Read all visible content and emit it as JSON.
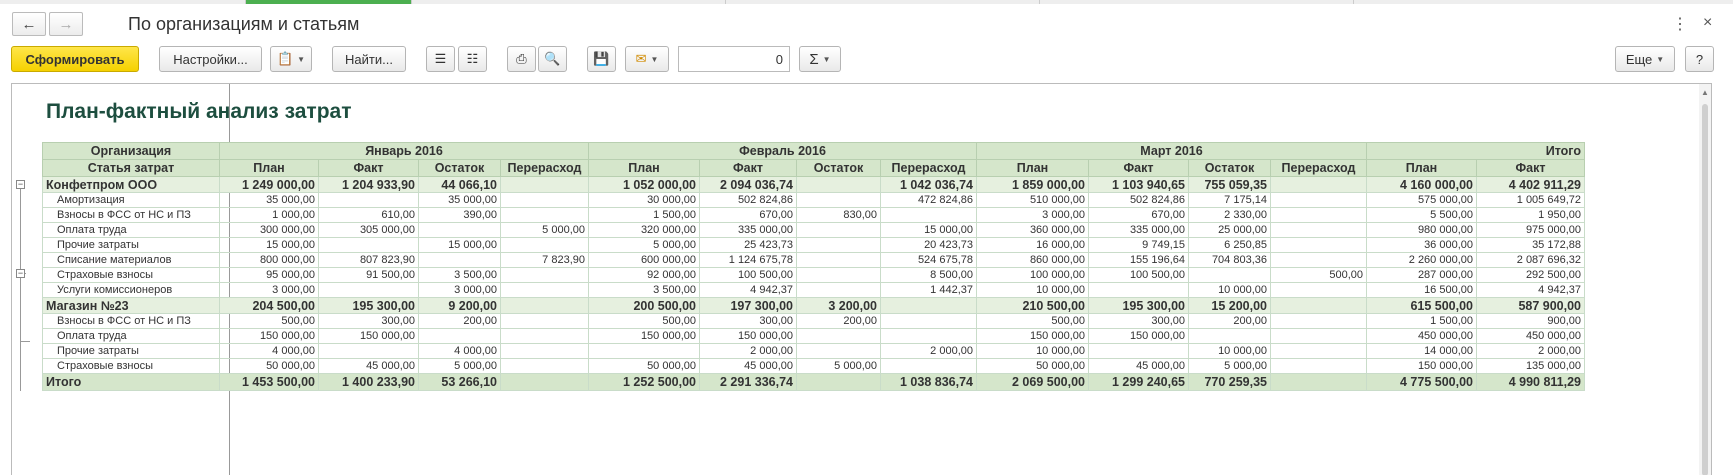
{
  "window": {
    "title": "По организациям и статьям",
    "more_icon": "kebab-icon",
    "close_icon": "close-icon"
  },
  "toolbar": {
    "generate_label": "Сформировать",
    "settings_label": "Настройки...",
    "find_label": "Найти...",
    "number_value": "0",
    "sum_symbol": "Σ",
    "more_label": "Еще",
    "help_label": "?"
  },
  "report": {
    "heading": "План-фактный анализ затрат",
    "header_row1": [
      "Организация",
      "Январь 2016",
      "Февраль 2016",
      "Март 2016",
      "Итого"
    ],
    "header_row2": [
      "Статья затрат",
      "План",
      "Факт",
      "Остаток",
      "Перерасход",
      "План",
      "Факт",
      "Остаток",
      "Перерасход",
      "План",
      "Факт",
      "Остаток",
      "Перерасход",
      "План",
      "Факт"
    ],
    "rows": [
      {
        "kind": "grp",
        "cells": [
          "Конфетпром ООО",
          "1 249 000,00",
          "1 204 933,90",
          "44 066,10",
          "",
          "1 052 000,00",
          "2 094 036,74",
          "",
          "1 042 036,74",
          "1 859 000,00",
          "1 103 940,65",
          "755 059,35",
          "",
          "4 160 000,00",
          "4 402 911,29"
        ]
      },
      {
        "kind": "itm",
        "cells": [
          "Амортизация",
          "35 000,00",
          "",
          "35 000,00",
          "",
          "30 000,00",
          "502 824,86",
          "",
          "472 824,86",
          "510 000,00",
          "502 824,86",
          "7 175,14",
          "",
          "575 000,00",
          "1 005 649,72"
        ]
      },
      {
        "kind": "itm",
        "cells": [
          "Взносы в ФСС от НС и ПЗ",
          "1 000,00",
          "610,00",
          "390,00",
          "",
          "1 500,00",
          "670,00",
          "830,00",
          "",
          "3 000,00",
          "670,00",
          "2 330,00",
          "",
          "5 500,00",
          "1 950,00"
        ]
      },
      {
        "kind": "itm",
        "cells": [
          "Оплата труда",
          "300 000,00",
          "305 000,00",
          "",
          "5 000,00",
          "320 000,00",
          "335 000,00",
          "",
          "15 000,00",
          "360 000,00",
          "335 000,00",
          "25 000,00",
          "",
          "980 000,00",
          "975 000,00"
        ]
      },
      {
        "kind": "itm",
        "cells": [
          "Прочие затраты",
          "15 000,00",
          "",
          "15 000,00",
          "",
          "5 000,00",
          "25 423,73",
          "",
          "20 423,73",
          "16 000,00",
          "9 749,15",
          "6 250,85",
          "",
          "36 000,00",
          "35 172,88"
        ]
      },
      {
        "kind": "itm",
        "cells": [
          "Списание материалов",
          "800 000,00",
          "807 823,90",
          "",
          "7 823,90",
          "600 000,00",
          "1 124 675,78",
          "",
          "524 675,78",
          "860 000,00",
          "155 196,64",
          "704 803,36",
          "",
          "2 260 000,00",
          "2 087 696,32"
        ]
      },
      {
        "kind": "itm",
        "cells": [
          "Страховые взносы",
          "95 000,00",
          "91 500,00",
          "3 500,00",
          "",
          "92 000,00",
          "100 500,00",
          "",
          "8 500,00",
          "100 000,00",
          "100 500,00",
          "",
          "500,00",
          "287 000,00",
          "292 500,00"
        ]
      },
      {
        "kind": "itm",
        "cells": [
          "Услуги комиссионеров",
          "3 000,00",
          "",
          "3 000,00",
          "",
          "3 500,00",
          "4 942,37",
          "",
          "1 442,37",
          "10 000,00",
          "",
          "10 000,00",
          "",
          "16 500,00",
          "4 942,37"
        ]
      },
      {
        "kind": "grp",
        "cells": [
          "Магазин №23",
          "204 500,00",
          "195 300,00",
          "9 200,00",
          "",
          "200 500,00",
          "197 300,00",
          "3 200,00",
          "",
          "210 500,00",
          "195 300,00",
          "15 200,00",
          "",
          "615 500,00",
          "587 900,00"
        ]
      },
      {
        "kind": "itm",
        "cells": [
          "Взносы в ФСС от НС и ПЗ",
          "500,00",
          "300,00",
          "200,00",
          "",
          "500,00",
          "300,00",
          "200,00",
          "",
          "500,00",
          "300,00",
          "200,00",
          "",
          "1 500,00",
          "900,00"
        ]
      },
      {
        "kind": "itm",
        "cells": [
          "Оплата труда",
          "150 000,00",
          "150 000,00",
          "",
          "",
          "150 000,00",
          "150 000,00",
          "",
          "",
          "150 000,00",
          "150 000,00",
          "",
          "",
          "450 000,00",
          "450 000,00"
        ]
      },
      {
        "kind": "itm",
        "cells": [
          "Прочие затраты",
          "4 000,00",
          "",
          "4 000,00",
          "",
          "",
          "2 000,00",
          "",
          "2 000,00",
          "10 000,00",
          "",
          "10 000,00",
          "",
          "14 000,00",
          "2 000,00"
        ]
      },
      {
        "kind": "itm",
        "cells": [
          "Страховые взносы",
          "50 000,00",
          "45 000,00",
          "5 000,00",
          "",
          "50 000,00",
          "45 000,00",
          "5 000,00",
          "",
          "50 000,00",
          "45 000,00",
          "5 000,00",
          "",
          "150 000,00",
          "135 000,00"
        ]
      },
      {
        "kind": "total",
        "cells": [
          "Итого",
          "1 453 500,00",
          "1 400 233,90",
          "53 266,10",
          "",
          "1 252 500,00",
          "2 291 336,74",
          "",
          "1 038 836,74",
          "2 069 500,00",
          "1 299 240,65",
          "770 259,35",
          "",
          "4 775 500,00",
          "4 990 811,29"
        ]
      }
    ]
  }
}
